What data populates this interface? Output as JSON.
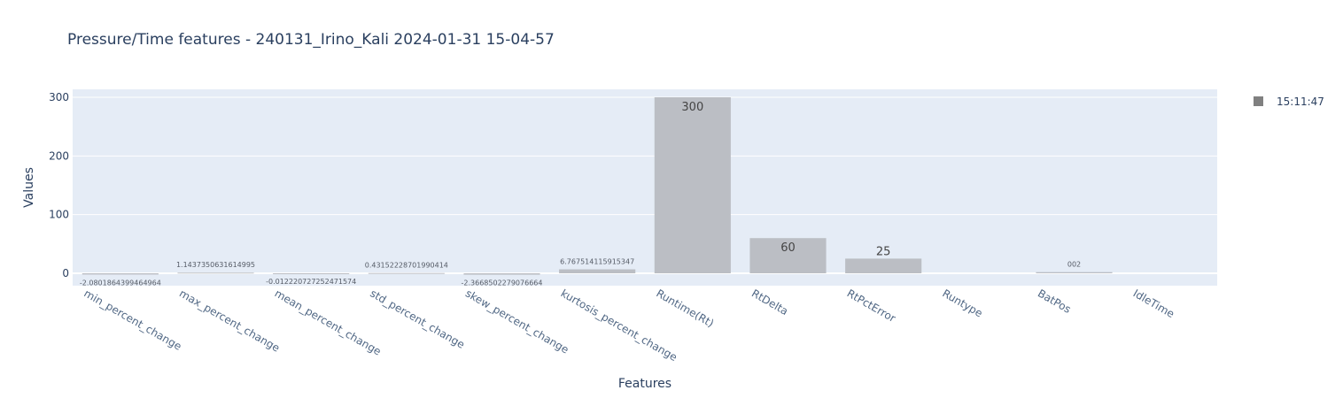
{
  "chart_data": {
    "type": "bar",
    "title": "Pressure/Time features - 240131_Irino_Kali 2024-01-31 15-04-57",
    "xlabel": "Features",
    "ylabel": "Values",
    "ylim": [
      -20,
      316
    ],
    "yticks": [
      0,
      100,
      200,
      300
    ],
    "grid": true,
    "legend_position": "right",
    "categories": [
      "min_percent_change",
      "max_percent_change",
      "mean_percent_change",
      "std_percent_change",
      "skew_percent_change",
      "kurtosis_percent_change",
      "Runtime(Rt)",
      "RtDelta",
      "RtPctError",
      "Runtype",
      "BatPos",
      "IdleTime"
    ],
    "series": [
      {
        "name": "15:11:47",
        "color": "#bbbec4",
        "legend_color": "#808080",
        "values": [
          -2.0801864399464964,
          1.1437350631614995,
          -0.012220727252471574,
          0.43152228701990414,
          -2.3668502279076664,
          6.767514115915347,
          300,
          60,
          25,
          null,
          2,
          null
        ],
        "labels": [
          "-2.0801864399464964",
          "1.1437350631614995",
          "-0.012220727252471574",
          "0.43152228701990414",
          "-2.3668502279076664",
          "6.767514115915347",
          "300",
          "60",
          "25",
          "",
          "002",
          ""
        ]
      }
    ]
  },
  "colors": {
    "plot_bg": "#e5ecf6",
    "bar": "#bbbec4",
    "label_small": "#555b66",
    "label_big": "#444444"
  }
}
